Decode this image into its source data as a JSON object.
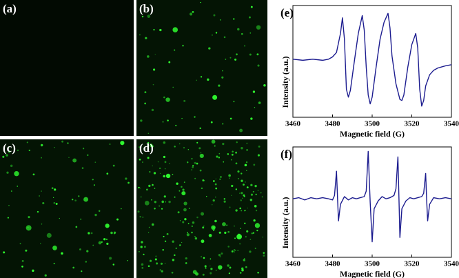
{
  "images": [
    {
      "label": "(a)"
    },
    {
      "label": "(b)"
    },
    {
      "label": "(c)"
    },
    {
      "label": "(d)"
    }
  ],
  "chart_data": [
    {
      "type": "line",
      "label": "(e)",
      "x_label": "Magnetic field (G)",
      "y_label": "Intensity (a.u.)",
      "x": [
        3460,
        3465,
        3470,
        3475,
        3478,
        3480,
        3482,
        3484,
        3485,
        3486,
        3487,
        3488,
        3489,
        3491,
        3493,
        3495,
        3496,
        3497,
        3498,
        3499,
        3500,
        3502,
        3504,
        3506,
        3508,
        3509,
        3510,
        3512,
        3514,
        3515,
        3516,
        3518,
        3520,
        3522,
        3523,
        3524,
        3525,
        3526,
        3527,
        3529,
        3531,
        3533,
        3535,
        3537,
        3540
      ],
      "series": [
        {
          "color": "#1c1c8f",
          "values": [
            52,
            51,
            52,
            51,
            52,
            54,
            58,
            75,
            89,
            70,
            25,
            18,
            24,
            50,
            75,
            91,
            78,
            45,
            20,
            12,
            18,
            45,
            70,
            85,
            93,
            80,
            55,
            30,
            16,
            15,
            20,
            45,
            65,
            75,
            62,
            25,
            10,
            15,
            28,
            38,
            42,
            44,
            45,
            46,
            47
          ]
        }
      ],
      "xlim": [
        3460,
        3540
      ],
      "xticks": [
        3460,
        3480,
        3500,
        3520,
        3540
      ],
      "ylim": [
        0,
        100
      ]
    },
    {
      "type": "line",
      "label": "(f)",
      "x_label": "Magnetic field (G)",
      "y_label": "Intensity (a.u.)",
      "x": [
        3460,
        3463,
        3466,
        3469,
        3472,
        3475,
        3478,
        3480,
        3481,
        3482,
        3482.5,
        3483,
        3484,
        3486,
        3488,
        3490,
        3492,
        3494,
        3496,
        3497,
        3498,
        3499,
        3500,
        3501,
        3503,
        3505,
        3507,
        3509,
        3511,
        3512,
        3513,
        3513.5,
        3514,
        3515,
        3517,
        3519,
        3521,
        3523,
        3525,
        3526,
        3527,
        3527.5,
        3528,
        3529,
        3531,
        3534,
        3537,
        3540
      ],
      "series": [
        {
          "color": "#1c1c8f",
          "values": [
            53,
            54,
            52,
            54,
            53,
            54,
            53,
            52,
            56,
            78,
            55,
            33,
            48,
            55,
            52,
            54,
            53,
            54,
            55,
            60,
            96,
            50,
            14,
            44,
            51,
            55,
            53,
            54,
            56,
            62,
            91,
            55,
            18,
            44,
            51,
            54,
            53,
            54,
            55,
            58,
            76,
            52,
            33,
            48,
            54,
            53,
            54,
            53
          ]
        }
      ],
      "xlim": [
        3460,
        3540
      ],
      "xticks": [
        3460,
        3480,
        3500,
        3520,
        3540
      ],
      "ylim": [
        0,
        100
      ]
    }
  ]
}
